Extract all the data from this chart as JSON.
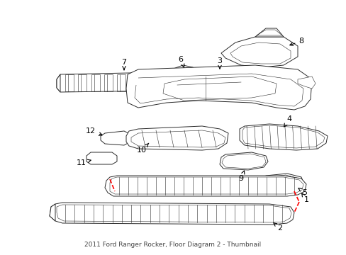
{
  "title": "2011 Ford Ranger Rocker, Floor Diagram 2 - Thumbnail",
  "background_color": "#ffffff",
  "fig_width": 4.89,
  "fig_height": 3.6,
  "dpi": 100,
  "line_color": "#2a2a2a",
  "lw": 0.7,
  "thin_lw": 0.4,
  "label_fs": 8,
  "bottom_label": "2011 Ford Ranger Rocker, Floor Diagram 2 - Thumbnail"
}
